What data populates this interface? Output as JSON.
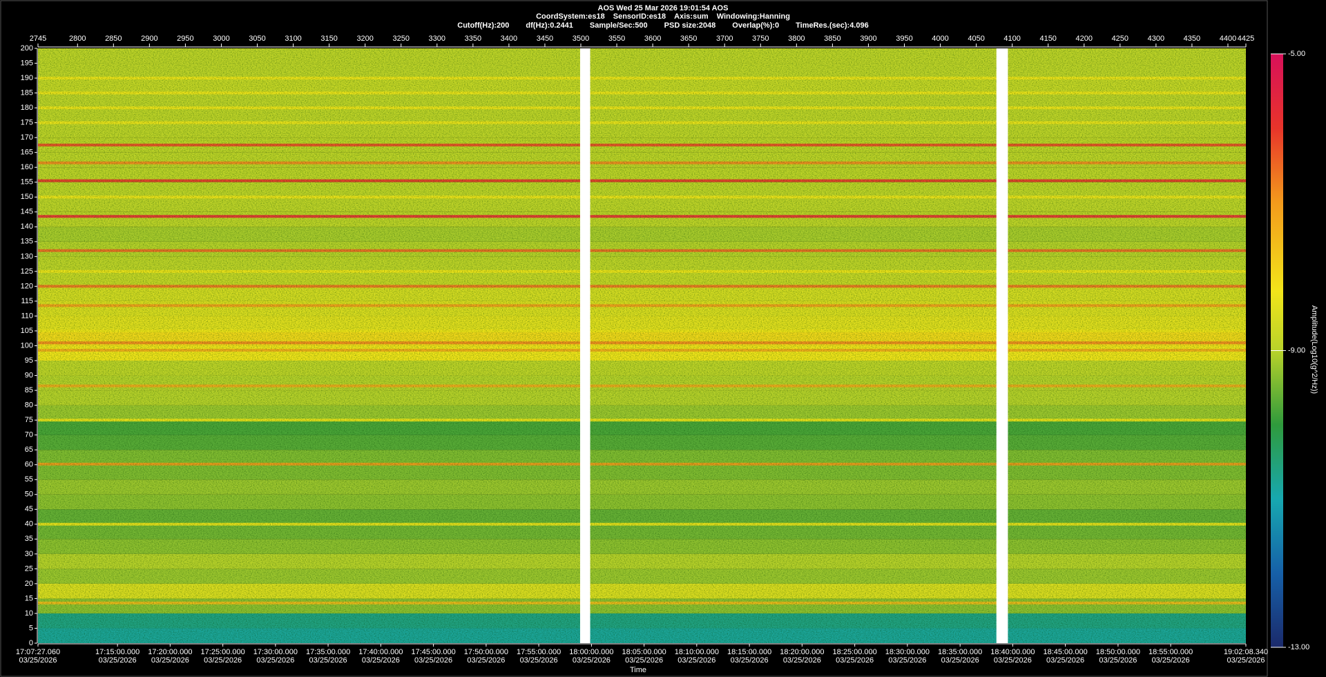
{
  "header": {
    "title": "AOS  Wed 25 Mar 2026 19:01:54  AOS",
    "line2": [
      "CoordSystem:es18",
      "SensorID:es18",
      "Axis:sum",
      "Windowing:Hanning"
    ],
    "line3": [
      "Cutoff(Hz):200",
      "df(Hz):0.2441",
      "Sample/Sec:500",
      "PSD size:2048",
      "Overlap(%):0",
      "TimeRes.(sec):4.096"
    ]
  },
  "chart_data": {
    "type": "spectrogram",
    "xlim": [
      2745,
      4425
    ],
    "xticks": [
      2745,
      2800,
      2850,
      2900,
      2950,
      3000,
      3050,
      3100,
      3150,
      3200,
      3250,
      3300,
      3350,
      3400,
      3450,
      3500,
      3550,
      3600,
      3650,
      3700,
      3750,
      3800,
      3850,
      3900,
      3950,
      4000,
      4050,
      4100,
      4150,
      4200,
      4250,
      4300,
      4350,
      4400,
      4425
    ],
    "xticks_bottom": [
      {
        "value": 2745,
        "label": "17:07:27.060"
      },
      {
        "value": 2855.6,
        "label": "17:15:00.000"
      },
      {
        "value": 2928.8,
        "label": "17:20:00.000"
      },
      {
        "value": 3002.1,
        "label": "17:25:00.000"
      },
      {
        "value": 3075.3,
        "label": "17:30:00.000"
      },
      {
        "value": 3148.5,
        "label": "17:35:00.000"
      },
      {
        "value": 3221.8,
        "label": "17:40:00.000"
      },
      {
        "value": 3295.0,
        "label": "17:45:00.000"
      },
      {
        "value": 3368.3,
        "label": "17:50:00.000"
      },
      {
        "value": 3441.5,
        "label": "17:55:00.000"
      },
      {
        "value": 3514.8,
        "label": "18:00:00.000"
      },
      {
        "value": 3588.0,
        "label": "18:05:00.000"
      },
      {
        "value": 3661.2,
        "label": "18:10:00.000"
      },
      {
        "value": 3734.5,
        "label": "18:15:00.000"
      },
      {
        "value": 3807.7,
        "label": "18:20:00.000"
      },
      {
        "value": 3881.0,
        "label": "18:25:00.000"
      },
      {
        "value": 3954.2,
        "label": "18:30:00.000"
      },
      {
        "value": 4027.5,
        "label": "18:35:00.000"
      },
      {
        "value": 4100.7,
        "label": "18:40:00.000"
      },
      {
        "value": 4173.9,
        "label": "18:45:00.000"
      },
      {
        "value": 4247.2,
        "label": "18:50:00.000"
      },
      {
        "value": 4320.4,
        "label": "18:55:00.000"
      },
      {
        "value": 4425,
        "label": "19:02:08.340"
      }
    ],
    "date": "03/25/2026",
    "x_label": "Time",
    "ylim": [
      0,
      200
    ],
    "yticks": [
      0,
      5,
      10,
      15,
      20,
      25,
      30,
      35,
      40,
      45,
      50,
      55,
      60,
      65,
      70,
      75,
      80,
      85,
      90,
      95,
      100,
      105,
      110,
      115,
      120,
      125,
      130,
      135,
      140,
      145,
      150,
      155,
      160,
      165,
      170,
      175,
      180,
      185,
      190,
      195,
      200
    ],
    "gaps": [
      [
        3499,
        3513
      ],
      [
        4078,
        4094
      ]
    ],
    "spectrum": {
      "frequencies": [
        0,
        5,
        10,
        15,
        20,
        25,
        30,
        35,
        40,
        45,
        50,
        55,
        60,
        65,
        70,
        75,
        80,
        85,
        90,
        95,
        100,
        105,
        110,
        115,
        120,
        125,
        130,
        135,
        140,
        145,
        150,
        155,
        160,
        165,
        170,
        175,
        180,
        185,
        190,
        195
      ],
      "amplitudes": [
        -10.8,
        -10.6,
        -9.3,
        -8.5,
        -9.2,
        -9.0,
        -9.3,
        -9.5,
        -9.6,
        -9.3,
        -9.2,
        -9.4,
        -9.4,
        -9.7,
        -9.8,
        -9.2,
        -9.0,
        -9.0,
        -8.9,
        -8.2,
        -8.0,
        -8.4,
        -8.5,
        -8.6,
        -8.8,
        -8.9,
        -9.0,
        -9.1,
        -8.9,
        -8.9,
        -8.9,
        -8.9,
        -8.9,
        -8.9,
        -8.9,
        -8.9,
        -8.9,
        -8.8,
        -8.9,
        -8.9
      ]
    },
    "lines": {
      "frequencies": [
        167.5,
        161.5,
        155.5,
        143.5,
        132,
        120,
        113.5,
        101,
        98.5,
        86.5,
        60.2,
        13.5,
        190,
        185,
        180,
        175,
        150,
        125,
        105,
        75,
        40
      ],
      "amplitudes": [
        -6.2,
        -6.8,
        -6.0,
        -5.8,
        -6.5,
        -6.6,
        -7.0,
        -6.8,
        -7.2,
        -7.2,
        -7.0,
        -7.5,
        -8.2,
        -8.2,
        -8.2,
        -8.2,
        -8.2,
        -8.2,
        -8.2,
        -8.2,
        -8.2
      ]
    },
    "colorbar": {
      "clim": [
        -13,
        -5
      ],
      "ticks": [
        {
          "value": -5,
          "label": "-5.00"
        },
        {
          "value": -9,
          "label": "-9.00"
        },
        {
          "value": -13,
          "label": "-13.00"
        }
      ],
      "label": "Amplitude(Log10(g^2/Hz))",
      "colorscale": [
        [
          -13,
          "#1b2a6b"
        ],
        [
          -12,
          "#1660a8"
        ],
        [
          -11,
          "#17a8b0"
        ],
        [
          -10,
          "#2f9a3c"
        ],
        [
          -9,
          "#b8d22a"
        ],
        [
          -8.2,
          "#f2e51a"
        ],
        [
          -7,
          "#f39a1c"
        ],
        [
          -6,
          "#e8342a"
        ],
        [
          -5,
          "#d8105a"
        ]
      ]
    }
  }
}
